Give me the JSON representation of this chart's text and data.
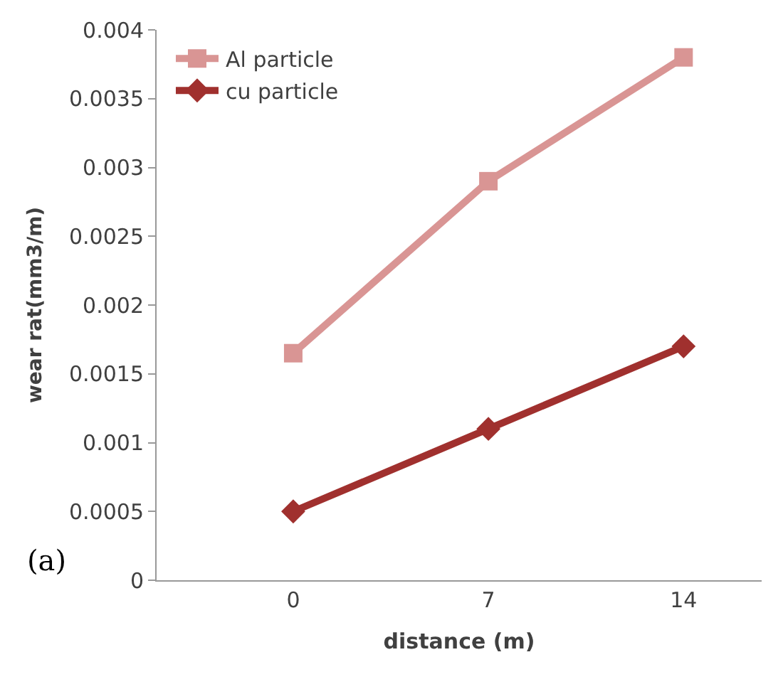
{
  "chart_data": {
    "type": "line",
    "xlabel": "distance (m)",
    "ylabel": "wear rat(mm3/m)",
    "categories": [
      "0",
      "7",
      "14"
    ],
    "series": [
      {
        "name": "Al particle",
        "color": "#d99594",
        "values": [
          0.00165,
          0.0029,
          0.0038
        ],
        "marker": "square"
      },
      {
        "name": "cu particle",
        "color": "#a0302e",
        "values": [
          0.0005,
          0.0011,
          0.0017
        ],
        "marker": "diamond"
      }
    ],
    "ylim": [
      0,
      0.004
    ],
    "yticks": [
      0,
      0.0005,
      0.001,
      0.0015,
      0.002,
      0.0025,
      0.003,
      0.0035,
      0.004
    ],
    "legend": "top left",
    "annotations": [
      "(a)"
    ]
  }
}
